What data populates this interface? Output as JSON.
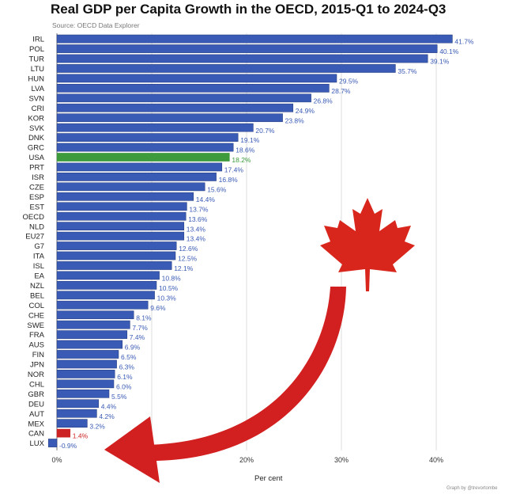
{
  "chart_data": {
    "type": "bar",
    "orientation": "horizontal",
    "title": "Real GDP per Capita Growth in the OECD, 2015-Q1 to 2024-Q3",
    "subtitle": "Source: OECD Data Explorer",
    "xlabel": "Per cent",
    "credit": "Graph by @trevortombe",
    "xlim": [
      -2,
      45
    ],
    "xticks": [
      0,
      20,
      30,
      40
    ],
    "xtick_labels": [
      "0%",
      "20%",
      "30%",
      "40%"
    ],
    "grid": true,
    "categories": [
      "IRL",
      "POL",
      "TUR",
      "LTU",
      "HUN",
      "LVA",
      "SVN",
      "CRI",
      "KOR",
      "SVK",
      "DNK",
      "GRC",
      "USA",
      "PRT",
      "ISR",
      "CZE",
      "ESP",
      "EST",
      "OECD",
      "NLD",
      "EU27",
      "G7",
      "ITA",
      "ISL",
      "EA",
      "NZL",
      "BEL",
      "COL",
      "CHE",
      "SWE",
      "FRA",
      "AUS",
      "FIN",
      "JPN",
      "NOR",
      "CHL",
      "GBR",
      "DEU",
      "AUT",
      "MEX",
      "CAN",
      "LUX"
    ],
    "values": [
      41.7,
      40.1,
      39.1,
      35.7,
      29.5,
      28.7,
      26.8,
      24.9,
      23.8,
      20.7,
      19.1,
      18.6,
      18.2,
      17.4,
      16.8,
      15.6,
      14.4,
      13.7,
      13.6,
      13.4,
      13.4,
      12.6,
      12.5,
      12.1,
      10.8,
      10.5,
      10.3,
      9.6,
      8.1,
      7.7,
      7.4,
      6.9,
      6.5,
      6.3,
      6.1,
      6.0,
      5.5,
      4.4,
      4.2,
      3.2,
      1.4,
      -0.9
    ],
    "value_labels": [
      "41.7%",
      "40.1%",
      "39.1%",
      "35.7%",
      "29.5%",
      "28.7%",
      "26.8%",
      "24.9%",
      "23.8%",
      "20.7%",
      "19.1%",
      "18.6%",
      "18.2%",
      "17.4%",
      "16.8%",
      "15.6%",
      "14.4%",
      "13.7%",
      "13.6%",
      "13.4%",
      "13.4%",
      "12.6%",
      "12.5%",
      "12.1%",
      "10.8%",
      "10.5%",
      "10.3%",
      "9.6%",
      "8.1%",
      "7.7%",
      "7.4%",
      "6.9%",
      "6.5%",
      "6.3%",
      "6.1%",
      "6.0%",
      "5.5%",
      "4.4%",
      "4.2%",
      "3.2%",
      "1.4%",
      "-0.9%"
    ],
    "highlight": {
      "USA": "#3d9a3d",
      "CAN": "#cc2222"
    },
    "colors": {
      "bar": "#3a5bb5",
      "bar_edge": "#22397a",
      "label": "#3a5bb5",
      "arrow": "#d21f1f",
      "leaf": "#d9261c"
    },
    "annotations": [
      "maple-leaf",
      "curved-arrow-to-CAN"
    ]
  }
}
